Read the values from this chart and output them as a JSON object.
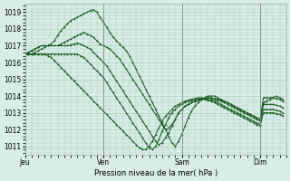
{
  "background_color": "#d8ede8",
  "grid_color": "#aaccbb",
  "line_color": "#1a5c20",
  "xlabel": "Pression niveau de la mer( hPa )",
  "ylim": [
    1010.5,
    1019.5
  ],
  "yticks": [
    1011,
    1012,
    1013,
    1014,
    1015,
    1016,
    1017,
    1018,
    1019
  ],
  "xtick_labels": [
    "Jeu",
    "Ven",
    "Sam",
    "Dim"
  ],
  "xtick_positions": [
    0,
    48,
    96,
    144
  ],
  "xmax": 160,
  "curves": [
    {
      "x": [
        0,
        2,
        4,
        6,
        8,
        10,
        12,
        14,
        16,
        18,
        20,
        22,
        24,
        26,
        28,
        30,
        32,
        34,
        36,
        38,
        40,
        42,
        44,
        46,
        48,
        50,
        52,
        54,
        56,
        58,
        60,
        62,
        64,
        66,
        68,
        70,
        72,
        74,
        76,
        78,
        80,
        82,
        84,
        86,
        88,
        90,
        92,
        94,
        96,
        98,
        100,
        102,
        104,
        106,
        108,
        110,
        112,
        114,
        116,
        118,
        120,
        122,
        124,
        126,
        128,
        130,
        132,
        134,
        136,
        138,
        140,
        142,
        144,
        146,
        148,
        150,
        152,
        154,
        156,
        158
      ],
      "y": [
        1016.5,
        1016.6,
        1016.7,
        1016.8,
        1016.9,
        1017.0,
        1017.0,
        1017.0,
        1017.1,
        1017.3,
        1017.6,
        1017.9,
        1018.1,
        1018.3,
        1018.5,
        1018.6,
        1018.7,
        1018.8,
        1018.9,
        1019.0,
        1019.1,
        1019.15,
        1019.0,
        1018.7,
        1018.4,
        1018.1,
        1017.8,
        1017.5,
        1017.3,
        1017.1,
        1016.9,
        1016.7,
        1016.4,
        1016.0,
        1015.6,
        1015.2,
        1014.8,
        1014.4,
        1014.0,
        1013.6,
        1013.2,
        1012.8,
        1012.4,
        1012.0,
        1011.6,
        1011.2,
        1011.0,
        1011.3,
        1011.7,
        1012.2,
        1012.7,
        1013.1,
        1013.4,
        1013.6,
        1013.8,
        1013.9,
        1014.0,
        1014.0,
        1014.0,
        1013.9,
        1013.8,
        1013.7,
        1013.6,
        1013.5,
        1013.4,
        1013.3,
        1013.2,
        1013.1,
        1013.0,
        1012.9,
        1012.8,
        1012.7,
        1012.6,
        1013.6,
        1013.7,
        1013.8,
        1013.9,
        1014.0,
        1013.9,
        1013.8
      ]
    },
    {
      "x": [
        0,
        2,
        4,
        6,
        8,
        10,
        12,
        14,
        16,
        18,
        20,
        22,
        24,
        26,
        28,
        30,
        32,
        34,
        36,
        38,
        40,
        42,
        44,
        46,
        48,
        50,
        52,
        54,
        56,
        58,
        60,
        62,
        64,
        66,
        68,
        70,
        72,
        74,
        76,
        78,
        80,
        82,
        84,
        86,
        88,
        90,
        92,
        94,
        96,
        98,
        100,
        102,
        104,
        106,
        108,
        110,
        112,
        114,
        116,
        118,
        120,
        122,
        124,
        126,
        128,
        130,
        132,
        134,
        136,
        138,
        140,
        142,
        144,
        146,
        148,
        150,
        152,
        154,
        156,
        158
      ],
      "y": [
        1016.5,
        1016.6,
        1016.7,
        1016.8,
        1016.9,
        1017.0,
        1017.0,
        1017.0,
        1017.0,
        1017.0,
        1017.0,
        1017.1,
        1017.2,
        1017.3,
        1017.4,
        1017.5,
        1017.6,
        1017.7,
        1017.8,
        1017.7,
        1017.6,
        1017.5,
        1017.3,
        1017.1,
        1017.0,
        1016.9,
        1016.8,
        1016.6,
        1016.4,
        1016.2,
        1015.9,
        1015.6,
        1015.3,
        1015.0,
        1014.7,
        1014.4,
        1014.1,
        1013.8,
        1013.5,
        1013.2,
        1012.9,
        1012.6,
        1012.3,
        1012.0,
        1012.1,
        1012.3,
        1012.6,
        1013.0,
        1013.2,
        1013.4,
        1013.5,
        1013.6,
        1013.7,
        1013.75,
        1013.8,
        1013.85,
        1013.9,
        1013.9,
        1013.85,
        1013.8,
        1013.75,
        1013.7,
        1013.6,
        1013.5,
        1013.4,
        1013.3,
        1013.2,
        1013.1,
        1013.0,
        1012.9,
        1012.8,
        1012.7,
        1012.6,
        1013.9,
        1013.9,
        1013.9,
        1013.9,
        1013.85,
        1013.8,
        1013.7
      ]
    },
    {
      "x": [
        0,
        2,
        4,
        6,
        8,
        10,
        12,
        14,
        16,
        18,
        20,
        22,
        24,
        26,
        28,
        30,
        32,
        34,
        36,
        38,
        40,
        42,
        44,
        46,
        48,
        50,
        52,
        54,
        56,
        58,
        60,
        62,
        64,
        66,
        68,
        70,
        72,
        74,
        76,
        78,
        80,
        82,
        84,
        86,
        88,
        90,
        92,
        94,
        96,
        98,
        100,
        102,
        104,
        106,
        108,
        110,
        112,
        114,
        116,
        118,
        120,
        122,
        124,
        126,
        128,
        130,
        132,
        134,
        136,
        138,
        140,
        142,
        144,
        146,
        148,
        150,
        152,
        154,
        156,
        158
      ],
      "y": [
        1016.5,
        1016.5,
        1016.5,
        1016.6,
        1016.7,
        1016.8,
        1016.9,
        1017.0,
        1017.0,
        1017.0,
        1017.0,
        1017.0,
        1017.0,
        1017.0,
        1017.05,
        1017.1,
        1017.15,
        1017.1,
        1017.0,
        1016.9,
        1016.8,
        1016.6,
        1016.4,
        1016.2,
        1016.0,
        1015.8,
        1015.5,
        1015.2,
        1014.9,
        1014.6,
        1014.3,
        1014.0,
        1013.7,
        1013.4,
        1013.1,
        1012.8,
        1012.5,
        1012.2,
        1011.9,
        1011.6,
        1011.3,
        1011.1,
        1011.2,
        1011.5,
        1011.8,
        1012.2,
        1012.6,
        1013.0,
        1013.2,
        1013.4,
        1013.5,
        1013.6,
        1013.7,
        1013.75,
        1013.8,
        1013.85,
        1013.9,
        1013.85,
        1013.8,
        1013.75,
        1013.7,
        1013.6,
        1013.5,
        1013.4,
        1013.3,
        1013.2,
        1013.1,
        1013.0,
        1012.9,
        1012.8,
        1012.7,
        1012.6,
        1012.5,
        1013.5,
        1013.5,
        1013.5,
        1013.5,
        1013.45,
        1013.4,
        1013.3
      ]
    },
    {
      "x": [
        0,
        2,
        4,
        6,
        8,
        10,
        12,
        14,
        16,
        18,
        20,
        22,
        24,
        26,
        28,
        30,
        32,
        34,
        36,
        38,
        40,
        42,
        44,
        46,
        48,
        50,
        52,
        54,
        56,
        58,
        60,
        62,
        64,
        66,
        68,
        70,
        72,
        74,
        76,
        78,
        80,
        82,
        84,
        86,
        88,
        90,
        92,
        94,
        96,
        98,
        100,
        102,
        104,
        106,
        108,
        110,
        112,
        114,
        116,
        118,
        120,
        122,
        124,
        126,
        128,
        130,
        132,
        134,
        136,
        138,
        140,
        142,
        144,
        146,
        148,
        150,
        152,
        154,
        156,
        158
      ],
      "y": [
        1016.5,
        1016.5,
        1016.5,
        1016.5,
        1016.5,
        1016.5,
        1016.5,
        1016.5,
        1016.5,
        1016.5,
        1016.5,
        1016.5,
        1016.5,
        1016.5,
        1016.5,
        1016.5,
        1016.5,
        1016.4,
        1016.3,
        1016.1,
        1015.9,
        1015.7,
        1015.5,
        1015.3,
        1015.1,
        1014.8,
        1014.5,
        1014.2,
        1013.9,
        1013.6,
        1013.3,
        1013.0,
        1012.7,
        1012.4,
        1012.1,
        1011.8,
        1011.5,
        1011.2,
        1010.9,
        1010.8,
        1011.0,
        1011.4,
        1011.9,
        1012.3,
        1012.7,
        1013.0,
        1013.2,
        1013.4,
        1013.5,
        1013.6,
        1013.7,
        1013.75,
        1013.8,
        1013.85,
        1013.9,
        1013.85,
        1013.8,
        1013.75,
        1013.7,
        1013.6,
        1013.5,
        1013.4,
        1013.3,
        1013.2,
        1013.1,
        1013.0,
        1012.9,
        1012.8,
        1012.7,
        1012.6,
        1012.5,
        1012.4,
        1012.3,
        1013.2,
        1013.2,
        1013.2,
        1013.2,
        1013.15,
        1013.1,
        1013.0
      ]
    },
    {
      "x": [
        0,
        2,
        4,
        6,
        8,
        10,
        12,
        14,
        16,
        18,
        20,
        22,
        24,
        26,
        28,
        30,
        32,
        34,
        36,
        38,
        40,
        42,
        44,
        46,
        48,
        50,
        52,
        54,
        56,
        58,
        60,
        62,
        64,
        66,
        68,
        70,
        72,
        74,
        76,
        78,
        80,
        82,
        84,
        86,
        88,
        90,
        92,
        94,
        96,
        98,
        100,
        102,
        104,
        106,
        108,
        110,
        112,
        114,
        116,
        118,
        120,
        122,
        124,
        126,
        128,
        130,
        132,
        134,
        136,
        138,
        140,
        142,
        144,
        146,
        148,
        150,
        152,
        154,
        156,
        158
      ],
      "y": [
        1016.5,
        1016.5,
        1016.5,
        1016.5,
        1016.5,
        1016.5,
        1016.5,
        1016.4,
        1016.3,
        1016.1,
        1015.9,
        1015.7,
        1015.5,
        1015.3,
        1015.1,
        1014.9,
        1014.7,
        1014.5,
        1014.3,
        1014.1,
        1013.9,
        1013.7,
        1013.5,
        1013.3,
        1013.1,
        1012.9,
        1012.7,
        1012.5,
        1012.3,
        1012.1,
        1011.9,
        1011.7,
        1011.5,
        1011.3,
        1011.1,
        1010.9,
        1010.8,
        1010.8,
        1011.0,
        1011.3,
        1011.7,
        1012.1,
        1012.5,
        1012.8,
        1013.0,
        1013.2,
        1013.4,
        1013.5,
        1013.6,
        1013.7,
        1013.75,
        1013.8,
        1013.85,
        1013.9,
        1013.85,
        1013.8,
        1013.75,
        1013.7,
        1013.6,
        1013.5,
        1013.4,
        1013.3,
        1013.2,
        1013.1,
        1013.0,
        1012.9,
        1012.8,
        1012.7,
        1012.6,
        1012.5,
        1012.4,
        1012.3,
        1012.2,
        1013.0,
        1013.0,
        1013.0,
        1013.0,
        1012.95,
        1012.9,
        1012.8
      ]
    }
  ]
}
